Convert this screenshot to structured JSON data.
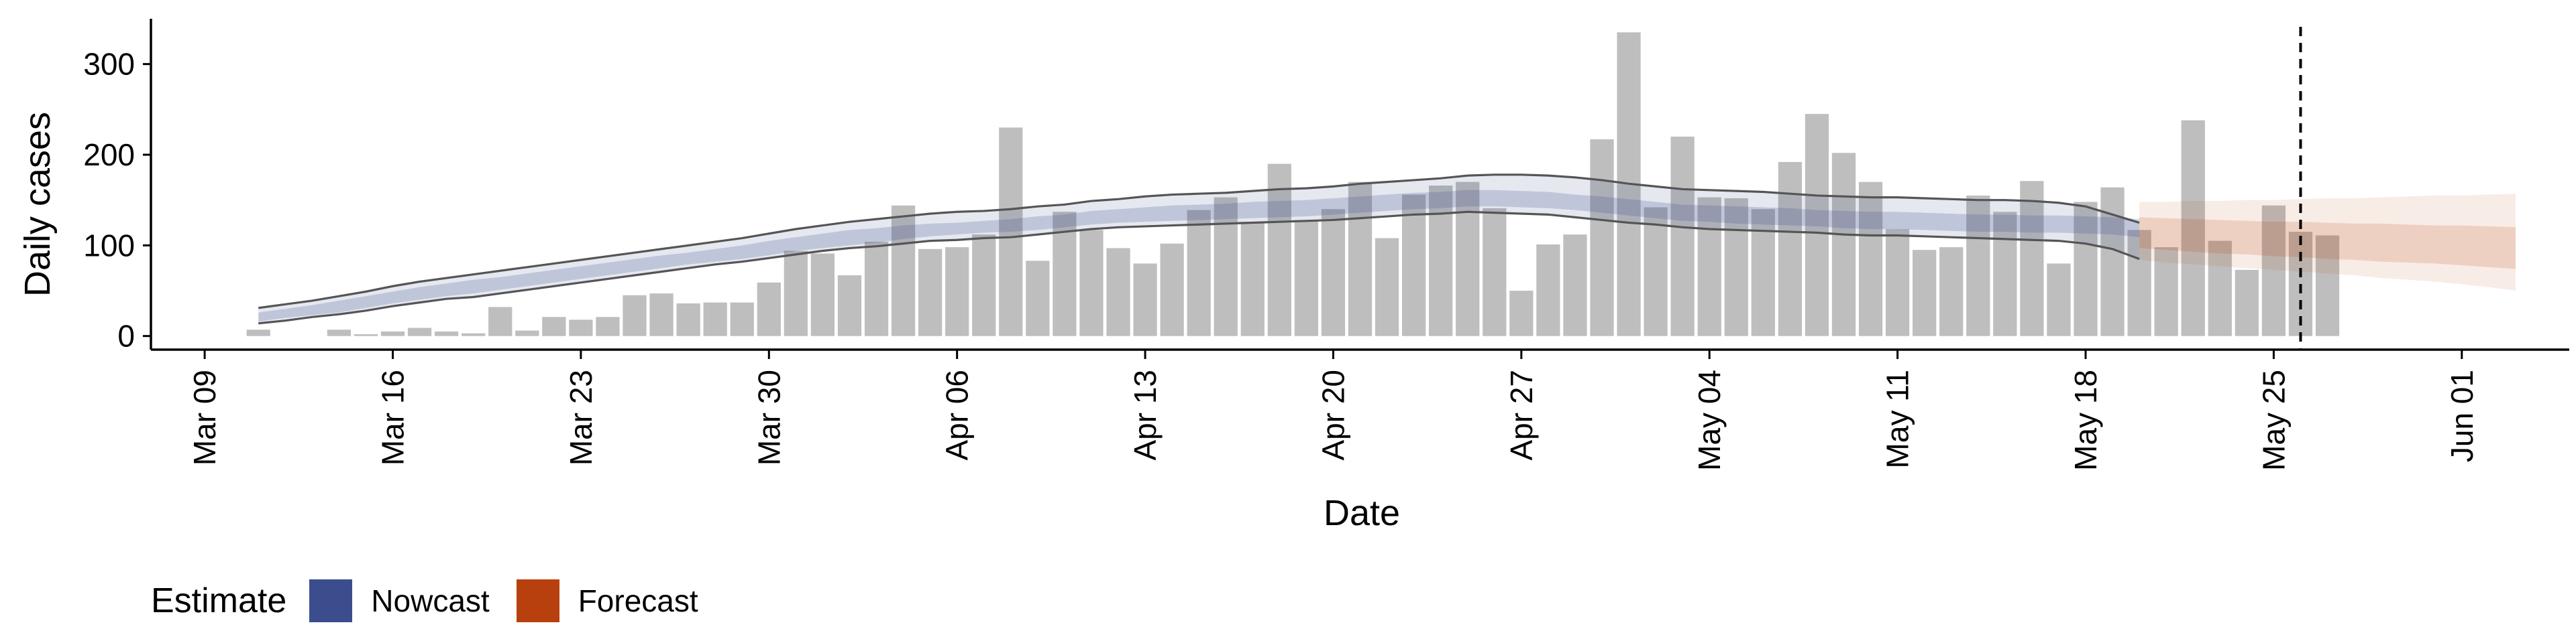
{
  "chart_data": {
    "type": "bar",
    "xlabel": "Date",
    "ylabel": "Daily cases",
    "ylim": [
      -15,
      350
    ],
    "y_ticks": [
      "0",
      "100",
      "200",
      "300"
    ],
    "x_ticks": [
      {
        "label": "Mar 09",
        "date": "2020-03-09"
      },
      {
        "label": "Mar 16",
        "date": "2020-03-16"
      },
      {
        "label": "Mar 23",
        "date": "2020-03-23"
      },
      {
        "label": "Mar 30",
        "date": "2020-03-30"
      },
      {
        "label": "Apr 06",
        "date": "2020-04-06"
      },
      {
        "label": "Apr 13",
        "date": "2020-04-13"
      },
      {
        "label": "Apr 20",
        "date": "2020-04-20"
      },
      {
        "label": "Apr 27",
        "date": "2020-04-27"
      },
      {
        "label": "May 04",
        "date": "2020-05-04"
      },
      {
        "label": "May 11",
        "date": "2020-05-11"
      },
      {
        "label": "May 18",
        "date": "2020-05-18"
      },
      {
        "label": "May 25",
        "date": "2020-05-25"
      },
      {
        "label": "Jun 01",
        "date": "2020-06-01"
      }
    ],
    "xlim": [
      "2020-03-07",
      "2020-06-05"
    ],
    "cutoff_date": "2020-05-26",
    "bars": {
      "start_date": "2020-03-11",
      "values": [
        7,
        0,
        0,
        7,
        2,
        5,
        9,
        5,
        3,
        32,
        6,
        21,
        18,
        21,
        45,
        47,
        36,
        37,
        37,
        59,
        94,
        91,
        67,
        104,
        144,
        96,
        98,
        112,
        230,
        83,
        137,
        117,
        97,
        80,
        102,
        139,
        153,
        126,
        190,
        128,
        140,
        170,
        108,
        156,
        166,
        170,
        141,
        50,
        101,
        112,
        217,
        335,
        142,
        220,
        153,
        152,
        140,
        192,
        245,
        202,
        170,
        118,
        95,
        98,
        155,
        137,
        171,
        80,
        148,
        164,
        117,
        98,
        238,
        105,
        73,
        144,
        115,
        111
      ]
    },
    "nowcast": {
      "start_date": "2020-03-11",
      "median": [
        21,
        25,
        29,
        33,
        37,
        43,
        48,
        52,
        55,
        58,
        62,
        66,
        70,
        74,
        78,
        82,
        86,
        90,
        94,
        98,
        102,
        106,
        110,
        112,
        115,
        117,
        118,
        120,
        122,
        125,
        127,
        131,
        133,
        135,
        136,
        137,
        138,
        140,
        141,
        142,
        144,
        146,
        148,
        150,
        150,
        152,
        152,
        151,
        150,
        148,
        146,
        143,
        140,
        137,
        135,
        134,
        133,
        132,
        130,
        129,
        128,
        128,
        127,
        126,
        125,
        125,
        124,
        124,
        123,
        122,
        119
      ],
      "inner_lower": [
        16,
        20,
        23,
        26,
        31,
        36,
        40,
        44,
        47,
        51,
        55,
        59,
        63,
        67,
        71,
        75,
        79,
        82,
        85,
        89,
        94,
        97,
        100,
        103,
        107,
        110,
        112,
        114,
        115,
        117,
        120,
        123,
        125,
        126,
        127,
        128,
        129,
        130,
        131,
        132,
        134,
        136,
        138,
        140,
        141,
        143,
        143,
        142,
        141,
        139,
        136,
        133,
        130,
        127,
        126,
        124,
        123,
        122,
        121,
        119,
        118,
        118,
        117,
        116,
        115,
        115,
        114,
        114,
        113,
        112,
        109
      ],
      "inner_upper": [
        26,
        30,
        34,
        39,
        44,
        49,
        54,
        58,
        62,
        65,
        69,
        73,
        77,
        81,
        85,
        89,
        92,
        96,
        100,
        105,
        109,
        113,
        117,
        119,
        122,
        124,
        125,
        127,
        129,
        132,
        134,
        138,
        140,
        142,
        144,
        145,
        146,
        148,
        149,
        150,
        152,
        154,
        156,
        158,
        159,
        161,
        161,
        160,
        159,
        156,
        154,
        151,
        148,
        145,
        144,
        143,
        142,
        141,
        139,
        138,
        137,
        137,
        136,
        135,
        134,
        134,
        133,
        133,
        132,
        131,
        129
      ],
      "outer_lower": [
        14,
        17,
        21,
        24,
        28,
        33,
        37,
        41,
        43,
        47,
        51,
        55,
        59,
        63,
        67,
        71,
        75,
        79,
        82,
        86,
        90,
        94,
        97,
        99,
        102,
        105,
        106,
        108,
        109,
        112,
        115,
        118,
        120,
        121,
        122,
        123,
        124,
        125,
        126,
        127,
        128,
        130,
        132,
        134,
        135,
        137,
        136,
        135,
        134,
        131,
        128,
        125,
        123,
        120,
        118,
        117,
        116,
        115,
        114,
        112,
        111,
        111,
        110,
        109,
        108,
        107,
        106,
        105,
        102,
        96,
        85
      ],
      "outer_upper": [
        31,
        35,
        39,
        44,
        49,
        55,
        60,
        64,
        68,
        72,
        76,
        80,
        84,
        88,
        92,
        96,
        100,
        104,
        108,
        113,
        118,
        122,
        126,
        129,
        132,
        135,
        137,
        138,
        140,
        143,
        145,
        149,
        151,
        154,
        156,
        157,
        158,
        160,
        162,
        163,
        165,
        168,
        170,
        172,
        174,
        177,
        178,
        178,
        177,
        175,
        172,
        168,
        165,
        162,
        161,
        160,
        159,
        157,
        155,
        154,
        153,
        153,
        152,
        151,
        150,
        150,
        149,
        147,
        143,
        134,
        125
      ]
    },
    "forecast": {
      "start_date": "2020-05-20",
      "median": [
        113,
        112,
        111,
        110,
        108,
        107,
        106,
        105,
        104,
        103,
        102,
        101,
        100,
        99,
        98
      ],
      "inner_lower": [
        97,
        95,
        93,
        91,
        90,
        88,
        87,
        85,
        84,
        82,
        81,
        80,
        78,
        76,
        74
      ],
      "inner_upper": [
        131,
        130,
        129,
        128,
        127,
        126,
        126,
        125,
        124,
        124,
        123,
        122,
        122,
        121,
        120
      ],
      "outer_lower": [
        84,
        81,
        79,
        77,
        75,
        73,
        71,
        69,
        67,
        64,
        62,
        60,
        57,
        54,
        50
      ],
      "outer_upper": [
        148,
        148,
        149,
        149,
        150,
        150,
        151,
        152,
        152,
        153,
        154,
        155,
        155,
        156,
        157
      ]
    },
    "grid": false,
    "legend_position": "bottom-left",
    "legend": {
      "title": "Estimate",
      "entries": [
        {
          "label": "Nowcast",
          "color": "#3b4d8c"
        },
        {
          "label": "Forecast",
          "color": "#b8400e"
        }
      ]
    },
    "colors": {
      "bar": "#bebebe",
      "nowcast": "#3b4d8c",
      "forecast": "#b8400e",
      "outer_line": "#555555",
      "cutoff": "#000000"
    }
  }
}
